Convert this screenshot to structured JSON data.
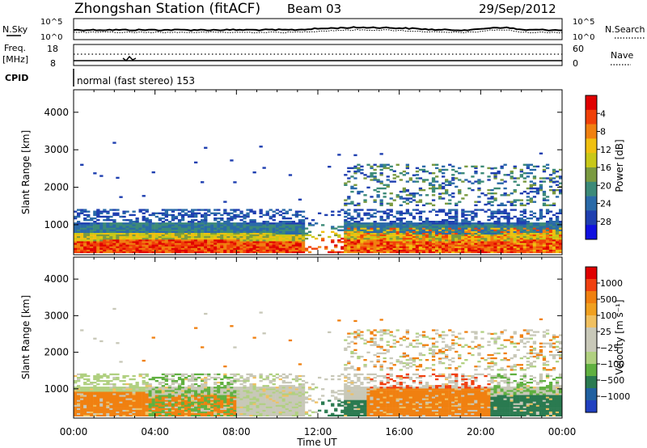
{
  "header": {
    "station": "Zhongshan Station (fitACF)",
    "beam": "Beam 03",
    "date": "29/Sep/2012",
    "mode": "normal (fast stereo) 153"
  },
  "top_panels": {
    "nsky_label": "N.Sky",
    "nsearch_label": "N.Search",
    "noise_ticks": [
      "10^5",
      "10^0"
    ],
    "freq_label_1": "Freq.",
    "freq_label_2": "[MHz]",
    "freq_ticks": [
      "18",
      "8"
    ],
    "nave_label": "Nave",
    "nave_ticks": [
      "60",
      "0"
    ],
    "cpid_label": "CPID"
  },
  "chart_data": [
    {
      "type": "heatmap",
      "panel": "power",
      "ylabel": "Slant Range [km]",
      "xlabel": "Time UT",
      "x_ticks": [
        "00:00",
        "04:00",
        "08:00",
        "12:00",
        "16:00",
        "20:00",
        "00:00"
      ],
      "y_ticks": [
        1000,
        2000,
        3000,
        4000
      ],
      "ylim": [
        200,
        4600
      ],
      "colorbar": {
        "label": "Power [dB]",
        "ticks": [
          "4",
          "8",
          "12",
          "16",
          "20",
          "24",
          "28"
        ],
        "colors": [
          "#1010e0",
          "#1f3fb0",
          "#2a6aa8",
          "#3c8a78",
          "#7a9a40",
          "#c8c818",
          "#f0c010",
          "#f08010",
          "#f04008",
          "#e00000"
        ]
      }
    },
    {
      "type": "heatmap",
      "panel": "velocity",
      "ylabel": "Slant Range [km]",
      "xlabel": "Time UT",
      "x_ticks": [
        "00:00",
        "04:00",
        "08:00",
        "12:00",
        "16:00",
        "20:00",
        "00:00"
      ],
      "y_ticks": [
        1000,
        2000,
        3000,
        4000
      ],
      "ylim": [
        200,
        4600
      ],
      "colorbar": {
        "label": "Velocity [m s⁻¹]",
        "ticks": [
          "1000",
          "500",
          "100",
          "25",
          "−25",
          "−100",
          "−500",
          "−1000"
        ],
        "colors": [
          "#2040c0",
          "#2060a0",
          "#2a7a50",
          "#60b040",
          "#b0d080",
          "#c8c8b8",
          "#c8c8b8",
          "#f0c060",
          "#f0a020",
          "#f08010",
          "#f04010",
          "#e00000"
        ]
      }
    }
  ]
}
